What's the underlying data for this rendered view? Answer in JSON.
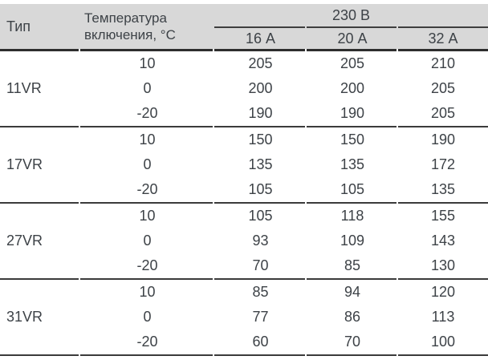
{
  "header": {
    "type_label": "Тип",
    "temperature_label_line1": "Температура",
    "temperature_label_line2": "включения, °С",
    "voltage_group_label": "230 В",
    "current_labels": [
      "16 А",
      "20 А",
      "32 А"
    ]
  },
  "groups": [
    {
      "type": "11VR",
      "rows": [
        {
          "temperature": "10",
          "values": [
            "205",
            "205",
            "210"
          ]
        },
        {
          "temperature": "0",
          "values": [
            "200",
            "200",
            "205"
          ]
        },
        {
          "temperature": "-20",
          "values": [
            "190",
            "190",
            "205"
          ]
        }
      ]
    },
    {
      "type": "17VR",
      "rows": [
        {
          "temperature": "10",
          "values": [
            "150",
            "150",
            "190"
          ]
        },
        {
          "temperature": "0",
          "values": [
            "135",
            "135",
            "172"
          ]
        },
        {
          "temperature": "-20",
          "values": [
            "105",
            "105",
            "135"
          ]
        }
      ]
    },
    {
      "type": "27VR",
      "rows": [
        {
          "temperature": "10",
          "values": [
            "105",
            "118",
            "155"
          ]
        },
        {
          "temperature": "0",
          "values": [
            "93",
            "109",
            "143"
          ]
        },
        {
          "temperature": "-20",
          "values": [
            "70",
            "85",
            "130"
          ]
        }
      ]
    },
    {
      "type": "31VR",
      "rows": [
        {
          "temperature": "10",
          "values": [
            "85",
            "94",
            "120"
          ]
        },
        {
          "temperature": "0",
          "values": [
            "77",
            "86",
            "113"
          ]
        },
        {
          "temperature": "-20",
          "values": [
            "60",
            "70",
            "100"
          ]
        }
      ]
    }
  ],
  "colors": {
    "header_bg": "#d8d8d8",
    "rule": "#3b3b3b",
    "header_rule": "#2e2e2e",
    "text": "#3d4247"
  }
}
